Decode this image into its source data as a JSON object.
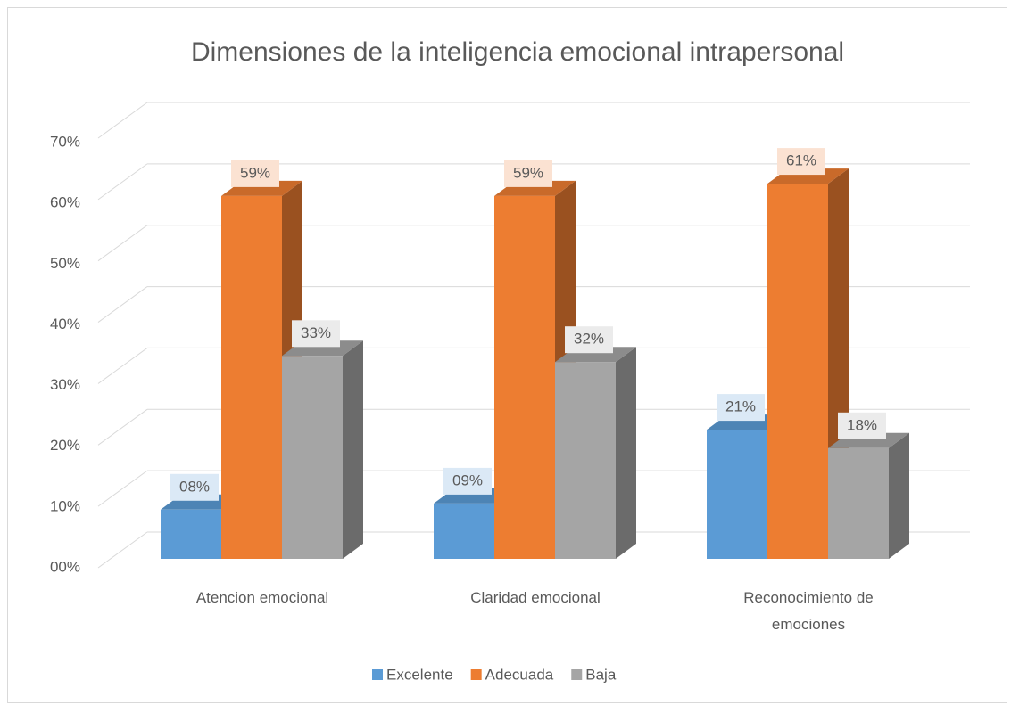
{
  "chart_data": {
    "type": "bar3d",
    "title": "Dimensiones de la inteligencia emocional intrapersonal",
    "categories": [
      "Atencion emocional",
      "Claridad emocional",
      "Reconocimiento de emociones"
    ],
    "series": [
      {
        "name": "Excelente",
        "color": "#5b9bd5",
        "values": [
          8,
          9,
          21
        ],
        "value_labels": [
          "08%",
          "09%",
          "21%"
        ]
      },
      {
        "name": "Adecuada",
        "color": "#ed7d31",
        "values": [
          59,
          59,
          61
        ],
        "value_labels": [
          "59%",
          "59%",
          "61%"
        ]
      },
      {
        "name": "Baja",
        "color": "#a5a5a5",
        "values": [
          33,
          32,
          18
        ],
        "value_labels": [
          "33%",
          "32%",
          "18%"
        ]
      }
    ],
    "ylim": [
      0,
      70
    ],
    "yticks": [
      {
        "value": 0,
        "label": "00%"
      },
      {
        "value": 10,
        "label": "10%"
      },
      {
        "value": 20,
        "label": "20%"
      },
      {
        "value": 30,
        "label": "30%"
      },
      {
        "value": 40,
        "label": "40%"
      },
      {
        "value": 50,
        "label": "50%"
      },
      {
        "value": 60,
        "label": "60%"
      },
      {
        "value": 70,
        "label": "70%"
      }
    ],
    "grid": true,
    "legend": "bottom"
  }
}
